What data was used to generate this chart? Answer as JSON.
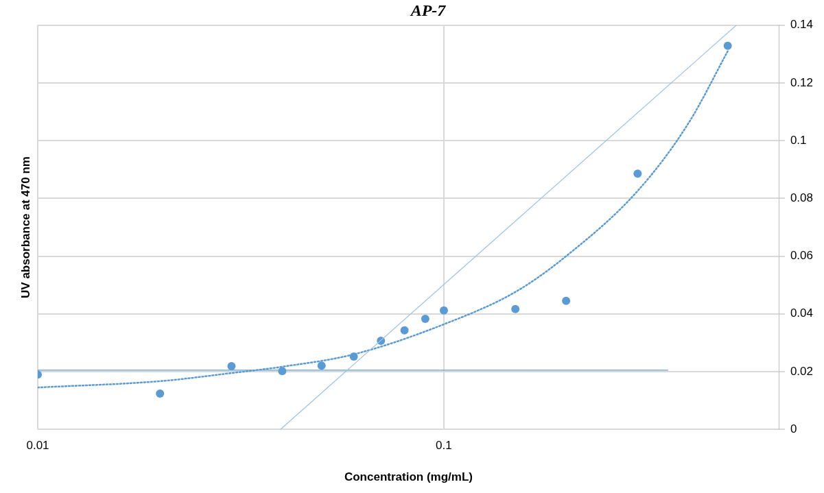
{
  "chart_data": {
    "type": "scatter",
    "title": "AP-7",
    "xlabel": "Concentration (mg/mL)",
    "ylabel": "UV absorbance at 470 nm",
    "log": "x",
    "xlim": [
      0.01,
      0.67
    ],
    "xticks": [
      0.01,
      0.1
    ],
    "ylim": [
      0,
      0.14
    ],
    "yticks": [
      0,
      0.02,
      0.04,
      0.06,
      0.08,
      0.1,
      0.12,
      0.14
    ],
    "grid": true,
    "legend": false,
    "series": [
      {
        "type": "scatter",
        "color": "#5b9bd5",
        "marker": "circle",
        "x": [
          0.01,
          0.02,
          0.03,
          0.04,
          0.05,
          0.06,
          0.07,
          0.08,
          0.09,
          0.1,
          0.15,
          0.2,
          0.3,
          0.5
        ],
        "values": [
          0.019,
          0.0124,
          0.0219,
          0.0202,
          0.0221,
          0.0252,
          0.0307,
          0.0343,
          0.0383,
          0.0412,
          0.0417,
          0.0445,
          0.0886,
          0.1329
        ]
      },
      {
        "type": "line",
        "color": "#5b9bd5",
        "marker": "none",
        "line_style": "dotted",
        "x": [
          0.01,
          0.02,
          0.03,
          0.04,
          0.06,
          0.1,
          0.15,
          0.2,
          0.3,
          0.4,
          0.5
        ],
        "values": [
          0.0145,
          0.0167,
          0.0195,
          0.0217,
          0.026,
          0.0364,
          0.0476,
          0.06,
          0.0826,
          0.106,
          0.131
        ]
      },
      {
        "type": "line",
        "color": "#5b9bd5",
        "marker": "none",
        "line_style": "solid",
        "x": [
          0.01,
          0.356
        ],
        "values": [
          0.0205,
          0.0205
        ]
      },
      {
        "type": "line",
        "color": "#9dc3e6",
        "marker": "none",
        "line_style": "solid",
        "x": [
          0.0396,
          0.525
        ],
        "values": [
          0,
          0.14
        ]
      }
    ]
  }
}
